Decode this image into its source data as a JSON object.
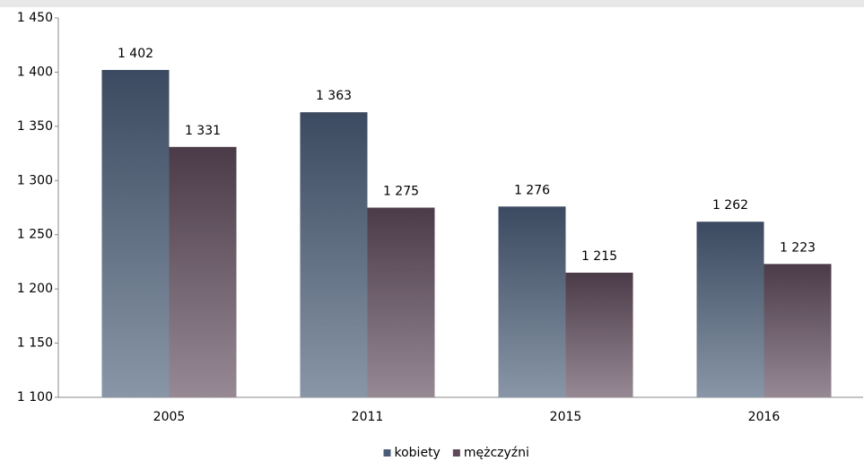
{
  "chart_data": {
    "type": "bar",
    "categories": [
      "2005",
      "2011",
      "2015",
      "2016"
    ],
    "series": [
      {
        "name": "kobiety",
        "color": "#4a5d78",
        "values": [
          1402,
          1363,
          1276,
          1262
        ],
        "value_labels": [
          "1 402",
          "1 363",
          "1 276",
          "1 262"
        ]
      },
      {
        "name": "mężczyźni",
        "color": "#5e4a5a",
        "values": [
          1331,
          1275,
          1215,
          1223
        ],
        "value_labels": [
          "1 331",
          "1 275",
          "1 215",
          "1 223"
        ]
      }
    ],
    "ylim": [
      1100,
      1450
    ],
    "yticks": [
      {
        "value": 1100,
        "label": "1 100"
      },
      {
        "value": 1150,
        "label": "1 150"
      },
      {
        "value": 1200,
        "label": "1 200"
      },
      {
        "value": 1250,
        "label": "1 250"
      },
      {
        "value": 1300,
        "label": "1 300"
      },
      {
        "value": 1350,
        "label": "1 350"
      },
      {
        "value": 1400,
        "label": "1 400"
      },
      {
        "value": 1450,
        "label": "1 450"
      }
    ],
    "grid": false,
    "legend": "bottom"
  }
}
